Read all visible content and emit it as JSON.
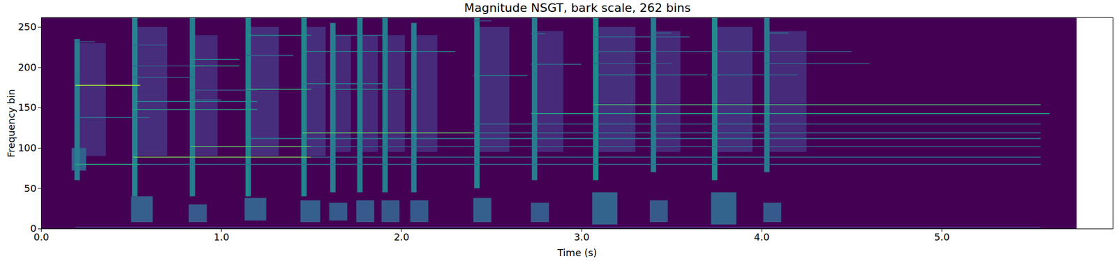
{
  "chart_data": {
    "type": "heatmap",
    "title": "Magnitude NSGT, bark scale, 262 bins",
    "x_label": "Time (s)",
    "y_label": "Frequency bin",
    "xlim": [
      0,
      5.95
    ],
    "ylim": [
      0,
      262
    ],
    "xticks": [
      0,
      1,
      2,
      3,
      4,
      5
    ],
    "yticks": [
      0,
      50,
      100,
      150,
      200,
      250
    ],
    "zlim": [
      0,
      1
    ],
    "color": "viridis",
    "cells": [
      {
        "t0": 0,
        "t1": 5.75,
        "b0": 0,
        "b1": 262,
        "v": 0
      },
      {
        "t0": 0.19,
        "t1": 0.36,
        "b0": 90,
        "b1": 230,
        "v": 0.12
      },
      {
        "t0": 0.17,
        "t1": 0.25,
        "b0": 72,
        "b1": 100,
        "v": 0.3
      },
      {
        "t0": 0.185,
        "t1": 0.215,
        "b0": 60,
        "b1": 235,
        "v": 0.42
      },
      {
        "t0": 0.51,
        "t1": 0.7,
        "b0": 90,
        "b1": 250,
        "v": 0.13
      },
      {
        "t0": 0.5,
        "t1": 0.62,
        "b0": 8,
        "b1": 40,
        "v": 0.3
      },
      {
        "t0": 0.505,
        "t1": 0.535,
        "b0": 40,
        "b1": 262,
        "v": 0.45
      },
      {
        "t0": 0.83,
        "t1": 0.98,
        "b0": 90,
        "b1": 240,
        "v": 0.12
      },
      {
        "t0": 0.82,
        "t1": 0.92,
        "b0": 8,
        "b1": 30,
        "v": 0.28
      },
      {
        "t0": 0.825,
        "t1": 0.855,
        "b0": 40,
        "b1": 262,
        "v": 0.42
      },
      {
        "t0": 1.14,
        "t1": 1.32,
        "b0": 90,
        "b1": 250,
        "v": 0.13
      },
      {
        "t0": 1.13,
        "t1": 1.25,
        "b0": 10,
        "b1": 38,
        "v": 0.3
      },
      {
        "t0": 1.135,
        "t1": 1.165,
        "b0": 40,
        "b1": 262,
        "v": 0.45
      },
      {
        "t0": 1.45,
        "t1": 1.58,
        "b0": 90,
        "b1": 250,
        "v": 0.13
      },
      {
        "t0": 1.44,
        "t1": 1.55,
        "b0": 8,
        "b1": 35,
        "v": 0.3
      },
      {
        "t0": 1.445,
        "t1": 1.475,
        "b0": 40,
        "b1": 262,
        "v": 0.45
      },
      {
        "t0": 1.61,
        "t1": 1.72,
        "b0": 95,
        "b1": 240,
        "v": 0.12
      },
      {
        "t0": 1.6,
        "t1": 1.7,
        "b0": 10,
        "b1": 32,
        "v": 0.28
      },
      {
        "t0": 1.605,
        "t1": 1.635,
        "b0": 45,
        "b1": 255,
        "v": 0.42
      },
      {
        "t0": 1.76,
        "t1": 1.87,
        "b0": 95,
        "b1": 240,
        "v": 0.12
      },
      {
        "t0": 1.75,
        "t1": 1.85,
        "b0": 8,
        "b1": 35,
        "v": 0.28
      },
      {
        "t0": 1.755,
        "t1": 1.785,
        "b0": 45,
        "b1": 262,
        "v": 0.42
      },
      {
        "t0": 1.9,
        "t1": 2.02,
        "b0": 95,
        "b1": 240,
        "v": 0.12
      },
      {
        "t0": 1.89,
        "t1": 1.99,
        "b0": 8,
        "b1": 35,
        "v": 0.28
      },
      {
        "t0": 1.895,
        "t1": 1.925,
        "b0": 45,
        "b1": 262,
        "v": 0.42
      },
      {
        "t0": 2.06,
        "t1": 2.2,
        "b0": 95,
        "b1": 240,
        "v": 0.12
      },
      {
        "t0": 2.05,
        "t1": 2.15,
        "b0": 8,
        "b1": 35,
        "v": 0.28
      },
      {
        "t0": 2.055,
        "t1": 2.085,
        "b0": 45,
        "b1": 255,
        "v": 0.42
      },
      {
        "t0": 2.41,
        "t1": 2.6,
        "b0": 95,
        "b1": 250,
        "v": 0.13
      },
      {
        "t0": 2.4,
        "t1": 2.5,
        "b0": 8,
        "b1": 38,
        "v": 0.3
      },
      {
        "t0": 2.405,
        "t1": 2.435,
        "b0": 50,
        "b1": 262,
        "v": 0.45
      },
      {
        "t0": 2.73,
        "t1": 2.9,
        "b0": 95,
        "b1": 245,
        "v": 0.12
      },
      {
        "t0": 2.72,
        "t1": 2.82,
        "b0": 8,
        "b1": 32,
        "v": 0.28
      },
      {
        "t0": 2.725,
        "t1": 2.755,
        "b0": 60,
        "b1": 262,
        "v": 0.42
      },
      {
        "t0": 3.07,
        "t1": 3.3,
        "b0": 95,
        "b1": 250,
        "v": 0.14
      },
      {
        "t0": 3.06,
        "t1": 3.2,
        "b0": 5,
        "b1": 45,
        "v": 0.32
      },
      {
        "t0": 3.065,
        "t1": 3.095,
        "b0": 60,
        "b1": 262,
        "v": 0.48
      },
      {
        "t0": 3.39,
        "t1": 3.55,
        "b0": 95,
        "b1": 245,
        "v": 0.12
      },
      {
        "t0": 3.38,
        "t1": 3.48,
        "b0": 8,
        "b1": 35,
        "v": 0.28
      },
      {
        "t0": 3.385,
        "t1": 3.415,
        "b0": 70,
        "b1": 262,
        "v": 0.42
      },
      {
        "t0": 3.73,
        "t1": 3.95,
        "b0": 95,
        "b1": 250,
        "v": 0.14
      },
      {
        "t0": 3.72,
        "t1": 3.86,
        "b0": 5,
        "b1": 45,
        "v": 0.32
      },
      {
        "t0": 3.725,
        "t1": 3.755,
        "b0": 60,
        "b1": 262,
        "v": 0.48
      },
      {
        "t0": 4.02,
        "t1": 4.25,
        "b0": 95,
        "b1": 245,
        "v": 0.12
      },
      {
        "t0": 4.01,
        "t1": 4.11,
        "b0": 8,
        "b1": 32,
        "v": 0.28
      },
      {
        "t0": 4.015,
        "t1": 4.045,
        "b0": 70,
        "b1": 262,
        "v": 0.42
      }
    ],
    "partials": [
      {
        "bin": 2,
        "start": 0.19,
        "end": 5.55,
        "level": 0.2
      },
      {
        "bin": 178,
        "start": 0.19,
        "end": 0.55,
        "level": 0.85
      },
      {
        "bin": 80,
        "start": 0.19,
        "end": 0.55,
        "level": 0.6
      },
      {
        "bin": 80,
        "start": 0.55,
        "end": 5.55,
        "level": 0.35
      },
      {
        "bin": 138,
        "start": 0.19,
        "end": 0.6,
        "level": 0.4
      },
      {
        "bin": 232,
        "start": 0.19,
        "end": 0.3,
        "level": 0.3
      },
      {
        "bin": 89,
        "start": 0.51,
        "end": 1.5,
        "level": 0.8
      },
      {
        "bin": 89,
        "start": 1.5,
        "end": 5.55,
        "level": 0.4
      },
      {
        "bin": 148,
        "start": 0.51,
        "end": 1.2,
        "level": 0.6
      },
      {
        "bin": 158,
        "start": 0.51,
        "end": 1.2,
        "level": 0.5
      },
      {
        "bin": 188,
        "start": 0.51,
        "end": 0.85,
        "level": 0.35
      },
      {
        "bin": 202,
        "start": 0.51,
        "end": 0.9,
        "level": 0.3
      },
      {
        "bin": 228,
        "start": 0.51,
        "end": 0.7,
        "level": 0.3
      },
      {
        "bin": 102,
        "start": 0.83,
        "end": 1.5,
        "level": 0.75
      },
      {
        "bin": 102,
        "start": 1.5,
        "end": 5.55,
        "level": 0.35
      },
      {
        "bin": 202,
        "start": 0.83,
        "end": 1.1,
        "level": 0.6
      },
      {
        "bin": 210,
        "start": 0.83,
        "end": 1.1,
        "level": 0.5
      },
      {
        "bin": 172,
        "start": 0.83,
        "end": 1.2,
        "level": 0.3
      },
      {
        "bin": 160,
        "start": 0.83,
        "end": 1.0,
        "level": 0.3
      },
      {
        "bin": 112,
        "start": 1.14,
        "end": 5.55,
        "level": 0.45
      },
      {
        "bin": 173,
        "start": 1.14,
        "end": 1.5,
        "level": 0.65
      },
      {
        "bin": 240,
        "start": 1.14,
        "end": 1.5,
        "level": 0.5
      },
      {
        "bin": 215,
        "start": 1.14,
        "end": 1.4,
        "level": 0.3
      },
      {
        "bin": 119,
        "start": 1.45,
        "end": 2.4,
        "level": 0.75
      },
      {
        "bin": 119,
        "start": 2.4,
        "end": 5.55,
        "level": 0.4
      },
      {
        "bin": 180,
        "start": 1.45,
        "end": 1.9,
        "level": 0.45
      },
      {
        "bin": 220,
        "start": 1.45,
        "end": 2.3,
        "level": 0.5
      },
      {
        "bin": 173,
        "start": 1.61,
        "end": 2.05,
        "level": 0.5
      },
      {
        "bin": 240,
        "start": 1.61,
        "end": 1.9,
        "level": 0.4
      },
      {
        "bin": 130,
        "start": 2.4,
        "end": 5.55,
        "level": 0.4
      },
      {
        "bin": 190,
        "start": 2.4,
        "end": 2.7,
        "level": 0.45
      },
      {
        "bin": 258,
        "start": 2.4,
        "end": 2.5,
        "level": 0.3
      },
      {
        "bin": 143,
        "start": 2.72,
        "end": 5.6,
        "level": 0.6
      },
      {
        "bin": 204,
        "start": 2.72,
        "end": 3.0,
        "level": 0.4
      },
      {
        "bin": 242,
        "start": 2.72,
        "end": 2.8,
        "level": 0.35
      },
      {
        "bin": 154,
        "start": 3.07,
        "end": 5.55,
        "level": 0.7
      },
      {
        "bin": 191,
        "start": 3.07,
        "end": 3.7,
        "level": 0.45
      },
      {
        "bin": 238,
        "start": 3.07,
        "end": 3.6,
        "level": 0.35
      },
      {
        "bin": 220,
        "start": 3.07,
        "end": 4.5,
        "level": 0.35
      },
      {
        "bin": 205,
        "start": 3.07,
        "end": 3.5,
        "level": 0.3
      },
      {
        "bin": 243,
        "start": 3.4,
        "end": 3.5,
        "level": 0.35
      },
      {
        "bin": 191,
        "start": 3.72,
        "end": 4.2,
        "level": 0.4
      },
      {
        "bin": 243,
        "start": 4.02,
        "end": 4.15,
        "level": 0.4
      },
      {
        "bin": 205,
        "start": 4.02,
        "end": 4.6,
        "level": 0.35
      }
    ]
  }
}
